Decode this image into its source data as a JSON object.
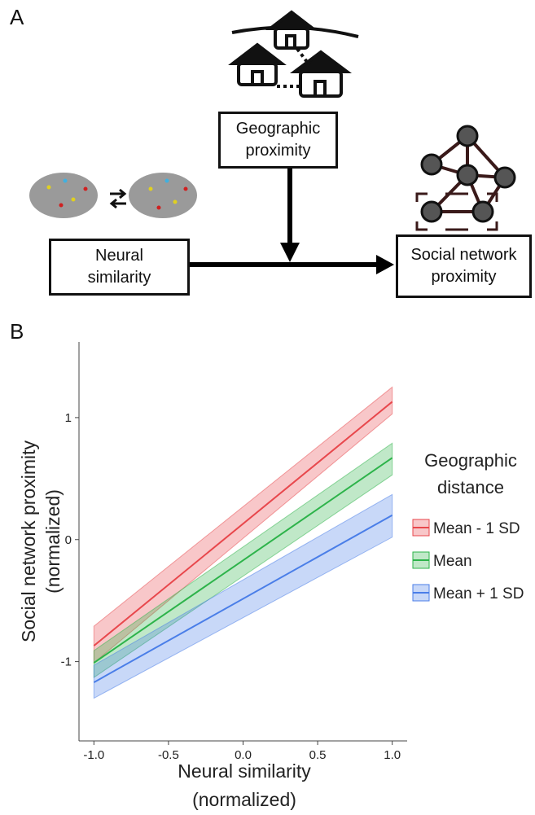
{
  "panels": [
    "A",
    "B"
  ],
  "diagram": {
    "nodes": [
      {
        "label": "Geographic proximity"
      },
      {
        "label": "Neural similarity"
      },
      {
        "label": "Social network proximity"
      }
    ]
  },
  "chart_data": {
    "type": "line",
    "x_label": [
      "Neural similarity",
      "(normalized)"
    ],
    "y_label": [
      "Social network proximity",
      "(normalized)"
    ],
    "legend_title": [
      "Geographic",
      "distance"
    ],
    "x": [
      -1.0,
      1.0
    ],
    "series": [
      {
        "name": "Mean - 1 SD",
        "color": "#e8474c",
        "values": [
          -0.87,
          1.13
        ],
        "lower": [
          -1.01,
          1.03
        ],
        "upper": [
          -0.71,
          1.25
        ]
      },
      {
        "name": "Mean",
        "color": "#2db34a",
        "values": [
          -1.01,
          0.67
        ],
        "lower": [
          -1.13,
          0.53
        ],
        "upper": [
          -0.91,
          0.79
        ]
      },
      {
        "name": "Mean + 1 SD",
        "color": "#4a7ee8",
        "values": [
          -1.17,
          0.2
        ],
        "lower": [
          -1.3,
          0.02
        ],
        "upper": [
          -1.03,
          0.37
        ]
      }
    ],
    "xlim": [
      -1.1,
      1.1
    ],
    "ylim": [
      -1.65,
      1.62
    ],
    "xticks": [
      {
        "value": -1,
        "label": "-1.0"
      },
      -0.5,
      {
        "value": 0,
        "label": "0.0"
      },
      0.5,
      {
        "value": 1,
        "label": "1.0"
      }
    ],
    "yticks": [
      -1,
      0,
      1
    ],
    "grid": false
  }
}
